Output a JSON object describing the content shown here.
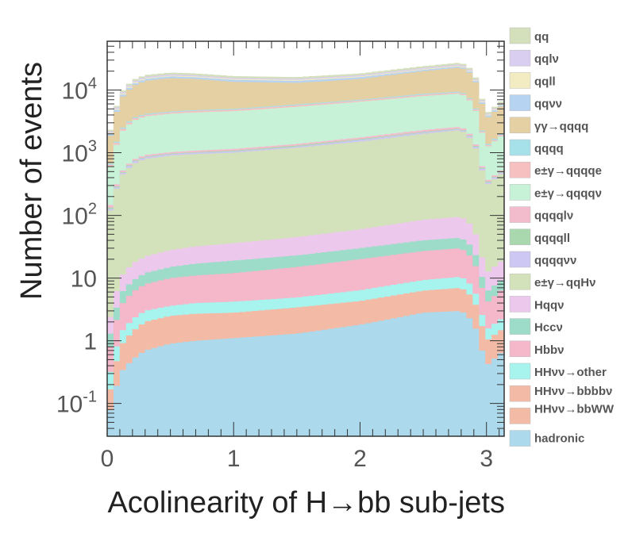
{
  "chart_data": {
    "type": "area",
    "stacked": true,
    "y_scale": "log",
    "xlabel": "Acolinearity of H→bb sub-jets",
    "ylabel": "Number of events",
    "xlim": [
      0,
      3.14
    ],
    "ylim": [
      0.03,
      60000
    ],
    "x_ticks": [
      {
        "value": 0,
        "label": "0"
      },
      {
        "value": 1,
        "label": "1"
      },
      {
        "value": 2,
        "label": "2"
      },
      {
        "value": 3,
        "label": "3"
      }
    ],
    "y_ticks": [
      {
        "value": 0.1,
        "label": "10",
        "sup": "-1"
      },
      {
        "value": 1,
        "label": "1",
        "sup": ""
      },
      {
        "value": 10,
        "label": "10",
        "sup": ""
      },
      {
        "value": 100,
        "label": "10",
        "sup": "2"
      },
      {
        "value": 1000,
        "label": "10",
        "sup": "3"
      },
      {
        "value": 10000,
        "label": "10",
        "sup": "4"
      }
    ],
    "legend_position": "right",
    "x": [
      0.0,
      0.1,
      0.2,
      0.3,
      0.5,
      0.7,
      1.0,
      1.5,
      2.0,
      2.5,
      2.8,
      2.9,
      3.0,
      3.14
    ],
    "cumulative_series": [
      {
        "name": "hadronic",
        "color": "#acdaec",
        "values": [
          0.05,
          0.3,
          0.5,
          0.7,
          0.9,
          1.0,
          1.1,
          1.3,
          1.8,
          2.8,
          3.0,
          2.0,
          0.4,
          0.7
        ]
      },
      {
        "name": "HHνν→bbWW",
        "color": "#f3bba6",
        "values": [
          0.08,
          0.6,
          1.0,
          1.5,
          1.9,
          2.1,
          2.2,
          2.7,
          3.5,
          5.2,
          5.8,
          4.0,
          0.8,
          1.3
        ]
      },
      {
        "name": "HHνν→bbbbν",
        "color": "#f3bba6",
        "values": [
          0.1,
          0.8,
          1.4,
          2.0,
          2.5,
          2.7,
          2.8,
          3.4,
          4.3,
          6.3,
          7.0,
          4.8,
          1.0,
          1.6
        ]
      },
      {
        "name": "HHνν→other",
        "color": "#a7f3ee",
        "values": [
          0.2,
          1.3,
          2.2,
          3.0,
          3.6,
          4.0,
          4.2,
          4.9,
          6.4,
          9.3,
          10.5,
          7.2,
          1.5,
          2.4
        ]
      },
      {
        "name": "Hbbν",
        "color": "#f4b8ca",
        "values": [
          0.5,
          3.5,
          6.0,
          8.0,
          10,
          11,
          12,
          15,
          20,
          27,
          30,
          20,
          4.0,
          7.0
        ]
      },
      {
        "name": "Hccν",
        "color": "#9cdcc8",
        "values": [
          0.8,
          5.5,
          9.0,
          12,
          15,
          17,
          19,
          23,
          30,
          40,
          44,
          30,
          6.0,
          10
        ]
      },
      {
        "name": "Hqqν",
        "color": "#ecc8ec",
        "values": [
          1.5,
          10,
          17,
          22,
          28,
          32,
          36,
          45,
          60,
          85,
          95,
          65,
          12,
          20
        ]
      },
      {
        "name": "e±γ→qqHν",
        "color": "#d3e2bb",
        "values": [
          80,
          400,
          650,
          800,
          900,
          950,
          1000,
          1200,
          1500,
          2000,
          2300,
          1500,
          300,
          500
        ]
      },
      {
        "name": "qqqqνν",
        "color": "#cdc7f3",
        "values": [
          85,
          420,
          700,
          850,
          950,
          1000,
          1050,
          1250,
          1600,
          2100,
          2400,
          1600,
          320,
          520
        ]
      },
      {
        "name": "qqqqll",
        "color": "#aad8ae",
        "values": [
          90,
          430,
          720,
          870,
          970,
          1020,
          1080,
          1300,
          1650,
          2150,
          2450,
          1650,
          330,
          530
        ]
      },
      {
        "name": "qqqqlν",
        "color": "#f3bccd",
        "values": [
          100,
          460,
          760,
          920,
          1020,
          1080,
          1150,
          1380,
          1750,
          2300,
          2600,
          1750,
          350,
          560
        ]
      },
      {
        "name": "e±γ→qqqqν",
        "color": "#c8f2d7",
        "values": [
          400,
          2000,
          3200,
          3800,
          4200,
          4400,
          4600,
          5400,
          6500,
          8000,
          8800,
          6000,
          1200,
          2000
        ]
      },
      {
        "name": "e±γ→qqqqe",
        "color": "#f6c0c0",
        "values": [
          430,
          2150,
          3400,
          4000,
          4400,
          4650,
          4850,
          5700,
          6800,
          8400,
          9200,
          6300,
          1250,
          2100
        ]
      },
      {
        "name": "qqqq",
        "color": "#a6e1ea",
        "values": [
          450,
          2250,
          3550,
          4150,
          4550,
          4800,
          5000,
          5900,
          7000,
          8700,
          9500,
          6500,
          1300,
          2200
        ]
      },
      {
        "name": "γγ→qqqq",
        "color": "#e5d0a4",
        "values": [
          1200,
          7000,
          11500,
          14000,
          15500,
          15000,
          13500,
          13000,
          15000,
          20000,
          23000,
          17000,
          3500,
          6000
        ]
      },
      {
        "name": "qqνν",
        "color": "#b6d3f2",
        "values": [
          1300,
          7500,
          12300,
          15000,
          16500,
          16000,
          14500,
          14000,
          16000,
          21000,
          24000,
          17800,
          3700,
          6300
        ]
      },
      {
        "name": "qqll",
        "color": "#f3ecc3",
        "values": [
          1350,
          7800,
          12800,
          15500,
          17000,
          16500,
          15000,
          14500,
          16500,
          21600,
          24700,
          18300,
          3800,
          6500
        ]
      },
      {
        "name": "qqlν",
        "color": "#d9cdf0",
        "values": [
          1420,
          8200,
          13400,
          16200,
          17800,
          17200,
          15600,
          15100,
          17200,
          22500,
          25700,
          19000,
          3950,
          6750
        ]
      },
      {
        "name": "qq",
        "color": "#d4e0bc",
        "values": [
          1500,
          8700,
          14300,
          17300,
          19000,
          18400,
          16700,
          16100,
          18400,
          24000,
          27400,
          20300,
          4200,
          7200
        ]
      }
    ],
    "legend": [
      {
        "label": "qq",
        "color": "#d4e0bc"
      },
      {
        "label": "qqlν",
        "color": "#d9cdf0"
      },
      {
        "label": "qqll",
        "color": "#f3ecc3"
      },
      {
        "label": "qqνν",
        "color": "#b6d3f2"
      },
      {
        "label": "γγ→qqqq",
        "color": "#e5d0a4"
      },
      {
        "label": "qqqq",
        "color": "#a6e1ea"
      },
      {
        "label": "e±γ→qqqqe",
        "color": "#f6c0c0"
      },
      {
        "label": "e±γ→qqqqν",
        "color": "#c8f2d7"
      },
      {
        "label": "qqqqlν",
        "color": "#f3bccd"
      },
      {
        "label": "qqqqll",
        "color": "#aad8ae"
      },
      {
        "label": "qqqqνν",
        "color": "#cdc7f3"
      },
      {
        "label": "e±γ→qqHν",
        "color": "#d3e2bb"
      },
      {
        "label": "Hqqν",
        "color": "#ecc8ec"
      },
      {
        "label": "Hccν",
        "color": "#9cdcc8"
      },
      {
        "label": "Hbbν",
        "color": "#f4b8ca"
      },
      {
        "label": "HHνν→other",
        "color": "#a7f3ee"
      },
      {
        "label": "HHνν→bbbbν",
        "color": "#f3bba6"
      },
      {
        "label": "HHνν→bbWW",
        "color": "#f3bba6"
      },
      {
        "label": "hadronic",
        "color": "#acdaec"
      }
    ]
  }
}
